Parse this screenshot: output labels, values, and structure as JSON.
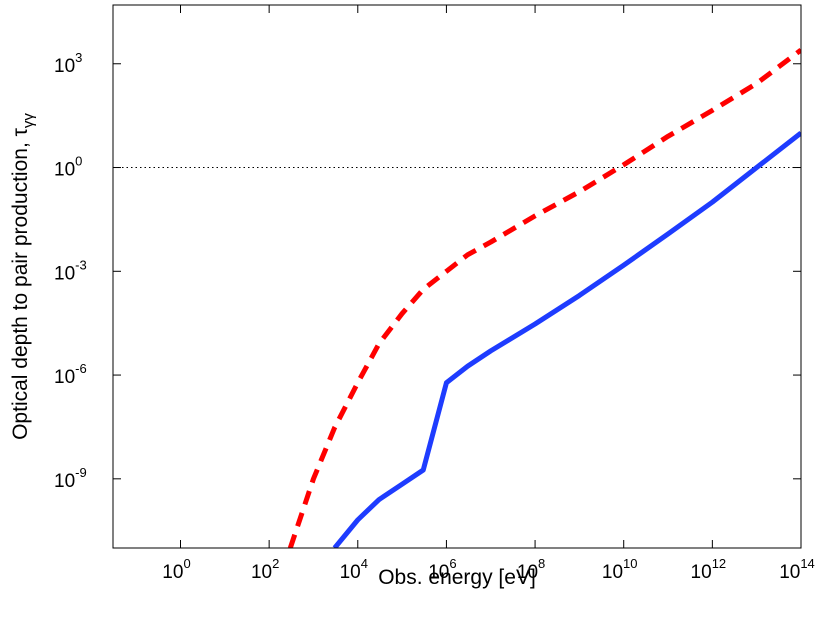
{
  "chart_data": {
    "type": "line",
    "title": "",
    "xlabel": "Obs. energy [eV]",
    "ylabel": {
      "text": "Optical depth to pair production, τ",
      "subscript": "γγ"
    },
    "xscale": "log",
    "yscale": "log",
    "xlim": [
      0.03,
      100000000000000
    ],
    "ylim": [
      1e-11,
      50000
    ],
    "grid": false,
    "legend": "none",
    "x_ticks": [
      {
        "base": "10",
        "exp": "0",
        "value": 1
      },
      {
        "base": "10",
        "exp": "2",
        "value": 100
      },
      {
        "base": "10",
        "exp": "4",
        "value": 10000
      },
      {
        "base": "10",
        "exp": "6",
        "value": 1000000
      },
      {
        "base": "10",
        "exp": "8",
        "value": 100000000
      },
      {
        "base": "10",
        "exp": "10",
        "value": 10000000000
      },
      {
        "base": "10",
        "exp": "12",
        "value": 1000000000000
      },
      {
        "base": "10",
        "exp": "14",
        "value": 100000000000000
      }
    ],
    "y_ticks": [
      {
        "base": "10",
        "exp": "-9",
        "value": 1e-09
      },
      {
        "base": "10",
        "exp": "-6",
        "value": 1e-06
      },
      {
        "base": "10",
        "exp": "-3",
        "value": 0.001
      },
      {
        "base": "10",
        "exp": "0",
        "value": 1
      },
      {
        "base": "10",
        "exp": "3",
        "value": 1000
      }
    ],
    "reference_lines": [
      {
        "axis": "y",
        "value": 1,
        "style": "dotted",
        "color": "#000000"
      }
    ],
    "series": [
      {
        "style": "dashed",
        "color": "#ff0000",
        "x": [
          300,
          1000,
          3000,
          10000,
          30000,
          100000,
          300000,
          1000000,
          3000000,
          10000000,
          100000000,
          1000000000,
          10000000000,
          100000000000,
          1000000000000,
          10000000000000,
          100000000000000
        ],
        "y": [
          1e-11,
          1e-09,
          3e-08,
          6e-07,
          8e-06,
          6e-05,
          0.0003,
          0.001,
          0.003,
          0.007,
          0.04,
          0.2,
          1.2,
          8,
          45,
          270,
          2500
        ]
      },
      {
        "style": "solid",
        "color": "#1e3cff",
        "x": [
          3000,
          10000,
          30000,
          100000,
          300000,
          1000000,
          3000000,
          10000000,
          100000000,
          1000000000,
          10000000000,
          100000000000,
          1000000000000,
          3000000000000,
          10000000000000,
          100000000000000
        ],
        "y": [
          1e-11,
          6.5e-11,
          2.5e-10,
          7e-10,
          1.8e-09,
          6e-07,
          1.8e-06,
          5e-06,
          3e-05,
          0.0002,
          0.0015,
          0.012,
          0.1,
          0.3,
          1,
          10
        ]
      }
    ]
  }
}
